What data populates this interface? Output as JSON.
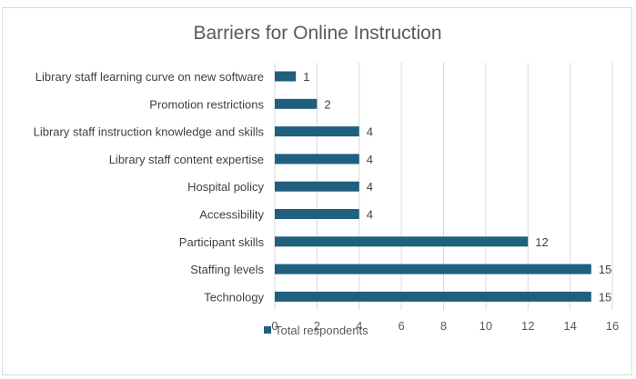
{
  "chart_data": {
    "type": "bar",
    "orientation": "horizontal",
    "title": "Barriers for Online Instruction",
    "categories": [
      "Library staff learning curve on new software",
      "Promotion restrictions",
      "Library staff instruction knowledge and skills",
      "Library staff content expertise",
      "Hospital policy",
      "Accessibility",
      "Participant skills",
      "Staffing levels",
      "Technology"
    ],
    "series": [
      {
        "name": "Total respondents",
        "values": [
          1,
          2,
          4,
          4,
          4,
          4,
          12,
          15,
          15
        ]
      }
    ],
    "xlim": [
      0,
      16
    ],
    "xticks": [
      0,
      2,
      4,
      6,
      8,
      10,
      12,
      14,
      16
    ],
    "grid": true,
    "data_labels": true,
    "legend_position": "bottom",
    "colors": {
      "bar": "#1f5f7f",
      "grid": "#d9d9d9"
    }
  }
}
